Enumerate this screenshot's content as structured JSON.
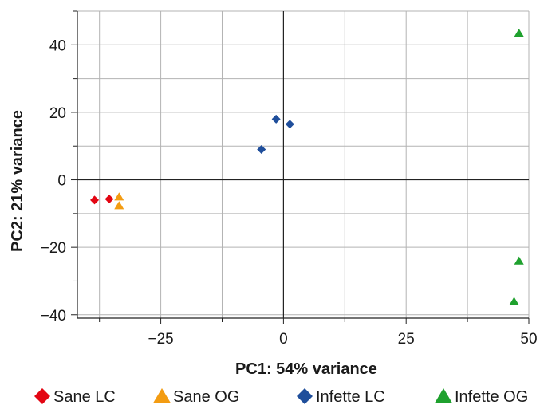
{
  "chart_data": {
    "type": "scatter",
    "xlabel": "PC1: 54% variance",
    "ylabel": "PC2: 21% variance",
    "xlim": [
      -42,
      50
    ],
    "ylim": [
      -41,
      50
    ],
    "xticks": [
      -25,
      0,
      25,
      50
    ],
    "yticks": [
      -40,
      -20,
      0,
      20,
      40
    ],
    "x_tick_labels": [
      "−25",
      "0",
      "25",
      "50"
    ],
    "y_tick_labels": [
      "−40",
      "−20",
      "0",
      "20",
      "40"
    ],
    "grid": true,
    "zero_lines": true,
    "legend_position": "bottom",
    "series": [
      {
        "name": "Sane LC",
        "marker": "diamond",
        "color": "#e30613",
        "points": [
          [
            -38.5,
            -6
          ],
          [
            -35.5,
            -5.7
          ]
        ]
      },
      {
        "name": "Sane OG",
        "marker": "triangle",
        "color": "#f39c12",
        "points": [
          [
            -33.5,
            -5
          ],
          [
            -33.5,
            -7.6
          ]
        ]
      },
      {
        "name": "Infette LC",
        "marker": "diamond",
        "color": "#1f4e9b",
        "points": [
          [
            -4.5,
            9
          ],
          [
            -1.5,
            18
          ],
          [
            1.3,
            16.5
          ]
        ]
      },
      {
        "name": "Infette OG",
        "marker": "triangle",
        "color": "#1fa12e",
        "points": [
          [
            48,
            43.5
          ],
          [
            48,
            -24
          ],
          [
            47,
            -36
          ]
        ]
      }
    ]
  }
}
